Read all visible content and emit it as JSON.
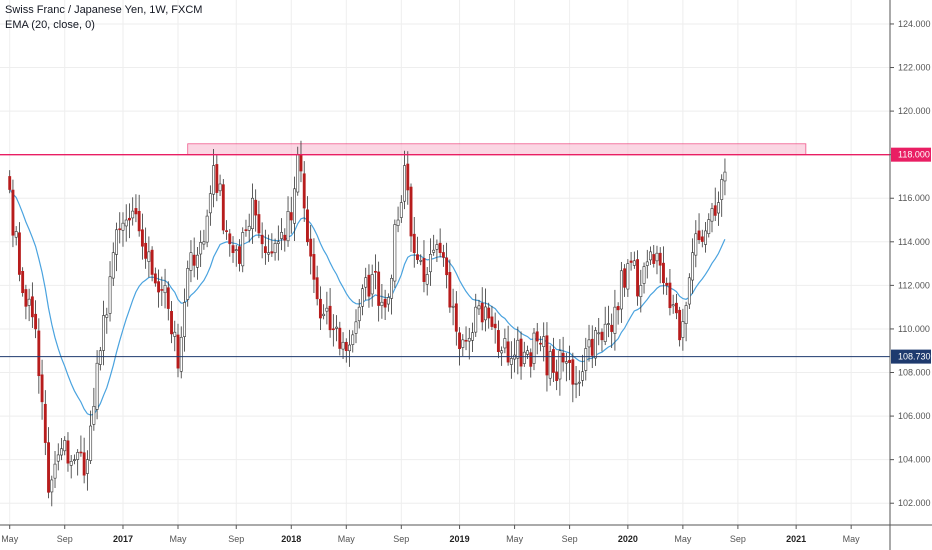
{
  "legend": {
    "title": "Swiss Franc / Japanese Yen, 1W, FXCM",
    "indicator": "EMA (20, close, 0)"
  },
  "colors": {
    "up": "#ffffff",
    "down": "#b71c1c",
    "wick": "#333333",
    "ema": "#4aa3df",
    "resistance": "#e91e63",
    "resistance_zone": "#f8bbd0",
    "support": "#1e3a6e",
    "grid": "#eeeeee"
  },
  "chart_data": {
    "type": "candlestick",
    "title": "Swiss Franc / Japanese Yen, 1W, FXCM",
    "x_ticks": [
      {
        "label": "May",
        "week": 0,
        "bold": false
      },
      {
        "label": "Sep",
        "week": 17,
        "bold": false
      },
      {
        "label": "2017",
        "week": 35,
        "bold": true
      },
      {
        "label": "May",
        "week": 52,
        "bold": false
      },
      {
        "label": "Sep",
        "week": 70,
        "bold": false
      },
      {
        "label": "2018",
        "week": 87,
        "bold": true
      },
      {
        "label": "May",
        "week": 104,
        "bold": false
      },
      {
        "label": "Sep",
        "week": 121,
        "bold": false
      },
      {
        "label": "2019",
        "week": 139,
        "bold": true
      },
      {
        "label": "May",
        "week": 156,
        "bold": false
      },
      {
        "label": "Sep",
        "week": 173,
        "bold": false
      },
      {
        "label": "2020",
        "week": 191,
        "bold": true
      },
      {
        "label": "May",
        "week": 208,
        "bold": false
      },
      {
        "label": "Sep",
        "week": 225,
        "bold": false
      },
      {
        "label": "2021",
        "week": 243,
        "bold": true
      },
      {
        "label": "May",
        "week": 260,
        "bold": false
      }
    ],
    "y_ticks": [
      "102.000",
      "104.000",
      "106.000",
      "108.000",
      "110.000",
      "112.000",
      "114.000",
      "116.000",
      "118.000",
      "120.000",
      "122.000",
      "124.000"
    ],
    "ylim": [
      101.0,
      125.1
    ],
    "x_week_range": [
      -3,
      272
    ],
    "support_level": "108.730",
    "resistance_level": "118.000",
    "resistance_zone": {
      "low": 118.0,
      "high": 118.5,
      "start_week": 55,
      "end_week": 246
    },
    "ema_period": 20,
    "close_anchors": [
      [
        0,
        116.4
      ],
      [
        3,
        112.5
      ],
      [
        8,
        110.0
      ],
      [
        12,
        102.5
      ],
      [
        16,
        104.5
      ],
      [
        20,
        104.0
      ],
      [
        24,
        104.0
      ],
      [
        28,
        109.0
      ],
      [
        32,
        113.5
      ],
      [
        36,
        115.0
      ],
      [
        40,
        114.5
      ],
      [
        44,
        112.5
      ],
      [
        48,
        112.0
      ],
      [
        52,
        108.2
      ],
      [
        56,
        113.5
      ],
      [
        60,
        114.0
      ],
      [
        63,
        117.5
      ],
      [
        67,
        114.5
      ],
      [
        71,
        113.0
      ],
      [
        75,
        116.0
      ],
      [
        79,
        113.5
      ],
      [
        83,
        114.0
      ],
      [
        87,
        115.0
      ],
      [
        89,
        118.0
      ],
      [
        92,
        114.0
      ],
      [
        96,
        110.5
      ],
      [
        100,
        110.0
      ],
      [
        104,
        109.0
      ],
      [
        108,
        111.0
      ],
      [
        112,
        112.5
      ],
      [
        116,
        111.0
      ],
      [
        120,
        115.0
      ],
      [
        122,
        117.5
      ],
      [
        125,
        113.5
      ],
      [
        129,
        112.5
      ],
      [
        133,
        113.5
      ],
      [
        136,
        111.0
      ],
      [
        140,
        109.5
      ],
      [
        144,
        111.0
      ],
      [
        148,
        110.5
      ],
      [
        152,
        109.0
      ],
      [
        156,
        108.8
      ],
      [
        160,
        109.0
      ],
      [
        164,
        109.3
      ],
      [
        168,
        108.0
      ],
      [
        172,
        108.5
      ],
      [
        175,
        107.5
      ],
      [
        179,
        109.5
      ],
      [
        183,
        109.5
      ],
      [
        187,
        111.0
      ],
      [
        191,
        113.0
      ],
      [
        195,
        112.0
      ],
      [
        199,
        113.0
      ],
      [
        203,
        112.0
      ],
      [
        207,
        109.5
      ],
      [
        211,
        113.5
      ],
      [
        215,
        114.5
      ],
      [
        219,
        115.8
      ],
      [
        221,
        117.2
      ]
    ]
  }
}
